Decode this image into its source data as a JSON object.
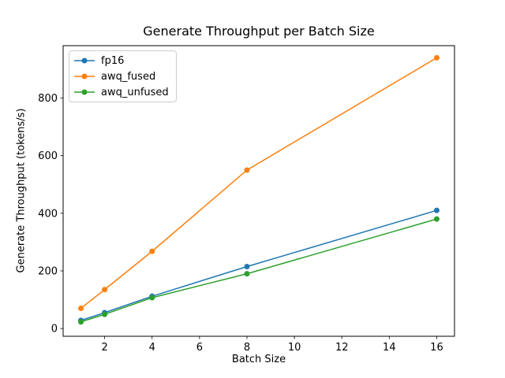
{
  "chart_data": {
    "type": "line",
    "title": "Generate Throughput per Batch Size",
    "xlabel": "Batch Size",
    "ylabel": "Generate Throughput (tokens/s)",
    "x": [
      1,
      2,
      4,
      8,
      16
    ],
    "series": [
      {
        "name": "fp16",
        "color": "#1f77b4",
        "values": [
          28,
          55,
          112,
          215,
          410
        ]
      },
      {
        "name": "awq_fused",
        "color": "#ff7f0e",
        "values": [
          70,
          135,
          268,
          550,
          940
        ]
      },
      {
        "name": "awq_unfused",
        "color": "#2ca02c",
        "values": [
          23,
          49,
          107,
          190,
          380
        ]
      }
    ],
    "xticks": [
      2,
      4,
      6,
      8,
      10,
      12,
      14,
      16
    ],
    "yticks": [
      0,
      200,
      400,
      600,
      800
    ],
    "xlim": [
      0.25,
      16.75
    ],
    "ylim": [
      -27,
      982
    ],
    "marker": "o",
    "grid": false,
    "legend_position": "upper left",
    "colors": {
      "spine": "#000000",
      "tick": "#000000",
      "legend_border": "#cccccc",
      "background": "#ffffff"
    }
  }
}
